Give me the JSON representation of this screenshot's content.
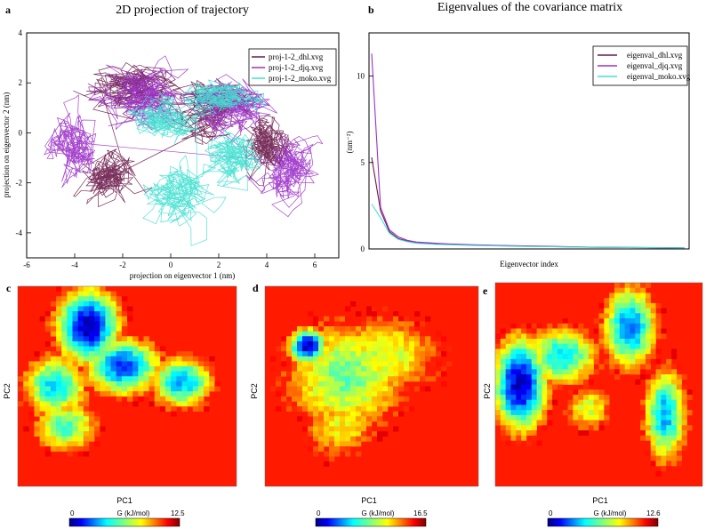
{
  "panel_letters": {
    "a": "a",
    "b": "b",
    "c": "c",
    "d": "d",
    "e": "e"
  },
  "chart_data": [
    {
      "id": "a",
      "type": "line",
      "title": "2D projection of trajectory",
      "xlabel": "projection on eigenvector 1 (nm)",
      "ylabel": "projection on eigenvector 2 (nm)",
      "xlim": [
        -6,
        7
      ],
      "ylim": [
        -5,
        4
      ],
      "xticks": [
        -6,
        -4,
        -2,
        0,
        2,
        4,
        6
      ],
      "yticks": [
        -4,
        -2,
        0,
        2,
        4
      ],
      "legend_position": "top-right",
      "series": [
        {
          "name": "proj-1-2_dhl.xvg",
          "color": "#6a1a4a",
          "clusters": [
            {
              "cx": -1.5,
              "cy": 1.8,
              "sx": 1.6,
              "sy": 0.9
            },
            {
              "cx": -2.5,
              "cy": -1.8,
              "sx": 1.0,
              "sy": 0.8
            },
            {
              "cx": 1.5,
              "cy": 1.0,
              "sx": 1.5,
              "sy": 1.0
            },
            {
              "cx": 4.0,
              "cy": -0.5,
              "sx": 0.8,
              "sy": 1.0
            }
          ]
        },
        {
          "name": "proj-1-2_djq.xvg",
          "color": "#9b30c8",
          "clusters": [
            {
              "cx": -4.0,
              "cy": -0.6,
              "sx": 0.8,
              "sy": 1.1
            },
            {
              "cx": 4.8,
              "cy": -1.5,
              "sx": 0.9,
              "sy": 1.1
            },
            {
              "cx": -1.0,
              "cy": 1.5,
              "sx": 1.5,
              "sy": 1.1
            },
            {
              "cx": 2.5,
              "cy": 1.2,
              "sx": 1.5,
              "sy": 1.0
            }
          ]
        },
        {
          "name": "proj-1-2_moko.xvg",
          "color": "#40e0d0",
          "clusters": [
            {
              "cx": -0.5,
              "cy": 0.5,
              "sx": 1.1,
              "sy": 0.7
            },
            {
              "cx": 2.0,
              "cy": 1.5,
              "sx": 1.2,
              "sy": 0.6
            },
            {
              "cx": 0.5,
              "cy": -2.5,
              "sx": 1.2,
              "sy": 1.0
            },
            {
              "cx": 2.5,
              "cy": -1.0,
              "sx": 1.0,
              "sy": 0.8
            }
          ]
        }
      ]
    },
    {
      "id": "b",
      "type": "line",
      "title": "Eigenvalues of the covariance matrix",
      "xlabel": "Eigenvector index",
      "ylabel": "(nm⁻²)",
      "ylim": [
        0,
        12.5
      ],
      "yticks": [
        0,
        5,
        10
      ],
      "legend_position": "top-right",
      "series": [
        {
          "name": "eigenval_dhl.xvg",
          "color": "#6a1a4a",
          "values": [
            5.3,
            2.2,
            1.0,
            0.6,
            0.45,
            0.35,
            0.3,
            0.25,
            0.22,
            0.2,
            0.18,
            0.16,
            0.14,
            0.12,
            0.1,
            0.09,
            0.08,
            0.07,
            0.06,
            0.05
          ]
        },
        {
          "name": "eigenval_djq.xvg",
          "color": "#9b30c8",
          "values": [
            11.3,
            2.4,
            1.1,
            0.7,
            0.5,
            0.4,
            0.33,
            0.28,
            0.24,
            0.21,
            0.19,
            0.17,
            0.15,
            0.13,
            0.11,
            0.1,
            0.09,
            0.08,
            0.07,
            0.06
          ]
        },
        {
          "name": "eigenval_moko.xvg",
          "color": "#40e0d0",
          "values": [
            2.6,
            1.8,
            0.9,
            0.55,
            0.42,
            0.33,
            0.27,
            0.23,
            0.2,
            0.18,
            0.16,
            0.14,
            0.13,
            0.11,
            0.1,
            0.09,
            0.08,
            0.07,
            0.06,
            0.05
          ]
        }
      ]
    },
    {
      "id": "c",
      "type": "heatmap",
      "xlabel": "PC1",
      "ylabel": "PC2",
      "colorbar_label": "G (kJ/mol)",
      "colorbar_min": "0",
      "colorbar_max": "12.5",
      "vmax": 12.5,
      "basins": [
        {
          "x": 0.32,
          "y": 0.2,
          "sx": 0.1,
          "sy": 0.13,
          "depth": 1.0
        },
        {
          "x": 0.48,
          "y": 0.4,
          "sx": 0.12,
          "sy": 0.1,
          "depth": 0.85
        },
        {
          "x": 0.17,
          "y": 0.5,
          "sx": 0.1,
          "sy": 0.11,
          "depth": 0.7
        },
        {
          "x": 0.75,
          "y": 0.48,
          "sx": 0.1,
          "sy": 0.09,
          "depth": 0.75
        },
        {
          "x": 0.22,
          "y": 0.7,
          "sx": 0.1,
          "sy": 0.09,
          "depth": 0.6
        }
      ]
    },
    {
      "id": "d",
      "type": "heatmap",
      "xlabel": "PC1",
      "ylabel": "PC2",
      "colorbar_label": "G (kJ/mol)",
      "colorbar_min": "0",
      "colorbar_max": "16.5",
      "vmax": 16.5,
      "basins": [
        {
          "x": 0.2,
          "y": 0.3,
          "sx": 0.06,
          "sy": 0.06,
          "depth": 1.0
        },
        {
          "x": 0.38,
          "y": 0.45,
          "sx": 0.2,
          "sy": 0.2,
          "depth": 0.55
        },
        {
          "x": 0.55,
          "y": 0.35,
          "sx": 0.2,
          "sy": 0.15,
          "depth": 0.45
        },
        {
          "x": 0.35,
          "y": 0.7,
          "sx": 0.13,
          "sy": 0.12,
          "depth": 0.4
        }
      ]
    },
    {
      "id": "e",
      "type": "heatmap",
      "xlabel": "PC1",
      "ylabel": "PC2",
      "colorbar_label": "G (kJ/mol)",
      "colorbar_min": "0",
      "colorbar_max": "12.6",
      "vmax": 12.6,
      "basins": [
        {
          "x": 0.12,
          "y": 0.5,
          "sx": 0.09,
          "sy": 0.16,
          "depth": 1.0
        },
        {
          "x": 0.32,
          "y": 0.36,
          "sx": 0.12,
          "sy": 0.1,
          "depth": 0.7
        },
        {
          "x": 0.65,
          "y": 0.22,
          "sx": 0.09,
          "sy": 0.14,
          "depth": 0.8
        },
        {
          "x": 0.82,
          "y": 0.65,
          "sx": 0.07,
          "sy": 0.16,
          "depth": 0.75
        },
        {
          "x": 0.45,
          "y": 0.62,
          "sx": 0.08,
          "sy": 0.08,
          "depth": 0.45
        }
      ]
    }
  ]
}
